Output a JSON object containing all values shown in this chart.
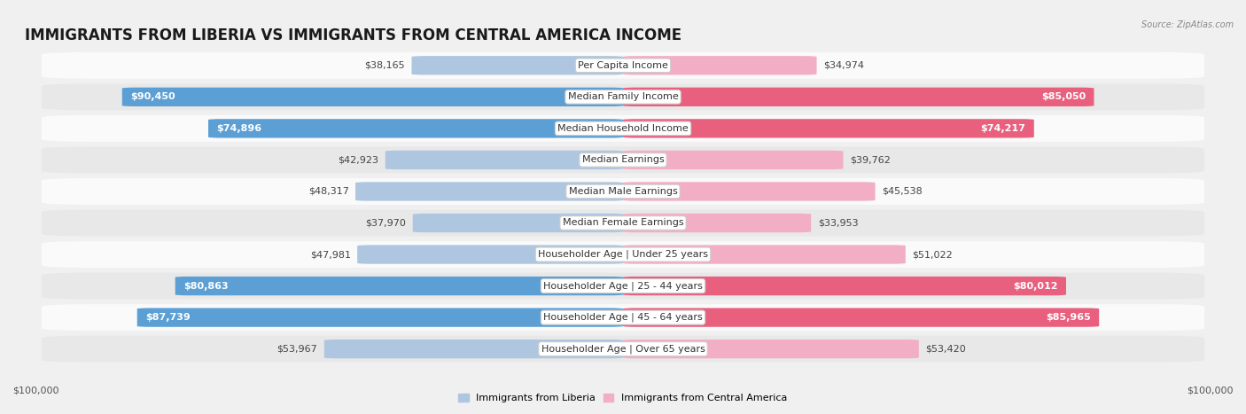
{
  "title": "IMMIGRANTS FROM LIBERIA VS IMMIGRANTS FROM CENTRAL AMERICA INCOME",
  "source": "Source: ZipAtlas.com",
  "categories": [
    "Per Capita Income",
    "Median Family Income",
    "Median Household Income",
    "Median Earnings",
    "Median Male Earnings",
    "Median Female Earnings",
    "Householder Age | Under 25 years",
    "Householder Age | 25 - 44 years",
    "Householder Age | 45 - 64 years",
    "Householder Age | Over 65 years"
  ],
  "liberia_values": [
    38165,
    90450,
    74896,
    42923,
    48317,
    37970,
    47981,
    80863,
    87739,
    53967
  ],
  "central_america_values": [
    34974,
    85050,
    74217,
    39762,
    45538,
    33953,
    51022,
    80012,
    85965,
    53420
  ],
  "liberia_labels": [
    "$38,165",
    "$90,450",
    "$74,896",
    "$42,923",
    "$48,317",
    "$37,970",
    "$47,981",
    "$80,863",
    "$87,739",
    "$53,967"
  ],
  "central_america_labels": [
    "$34,974",
    "$85,050",
    "$74,217",
    "$39,762",
    "$45,538",
    "$33,953",
    "$51,022",
    "$80,012",
    "$85,965",
    "$53,420"
  ],
  "liberia_color_light": "#aec6e0",
  "liberia_color_dark": "#5b9fd4",
  "central_america_color_light": "#f2aec4",
  "central_america_color_dark": "#e8607e",
  "max_value": 100000,
  "background_color": "#f0f0f0",
  "row_bg_light": "#fafafa",
  "row_bg_dark": "#e8e8e8",
  "xlabel_left": "$100,000",
  "xlabel_right": "$100,000",
  "legend_liberia": "Immigrants from Liberia",
  "legend_central_america": "Immigrants from Central America",
  "title_fontsize": 12,
  "label_fontsize": 8,
  "category_fontsize": 8,
  "bar_height": 0.6,
  "inside_threshold": 0.55
}
